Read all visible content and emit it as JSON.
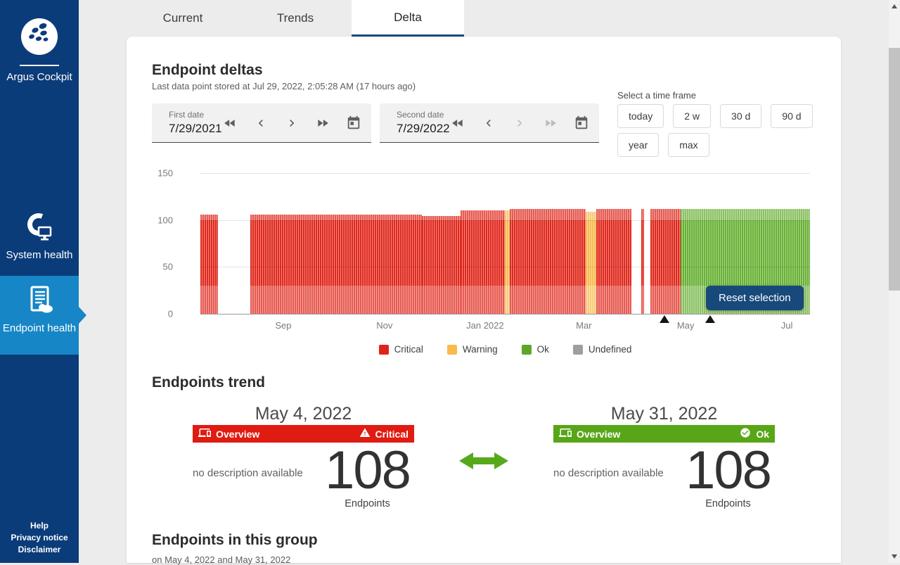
{
  "sidebar": {
    "title": "Argus Cockpit",
    "items": [
      {
        "label": "System health",
        "selected": false
      },
      {
        "label": "Endpoint health",
        "selected": true
      }
    ],
    "footer": [
      "Help",
      "Privacy notice",
      "Disclaimer"
    ],
    "colors": {
      "background": "#0b3c7a",
      "selected": "#1786c6"
    }
  },
  "tabs": [
    {
      "label": "Current",
      "active": false
    },
    {
      "label": "Trends",
      "active": false
    },
    {
      "label": "Delta",
      "active": true
    }
  ],
  "header": {
    "title": "Endpoint deltas",
    "subtitle": "Last data point stored at Jul 29, 2022, 2:05:28 AM (17 hours ago)"
  },
  "date_pickers": {
    "first": {
      "label": "First date",
      "value": "7/29/2021",
      "prev_enabled": true,
      "next_enabled": true
    },
    "second": {
      "label": "Second date",
      "value": "7/29/2022",
      "prev_enabled": true,
      "next_enabled": false
    }
  },
  "time_frame": {
    "label": "Select a time frame",
    "options": [
      "today",
      "2 w",
      "30 d",
      "90 d",
      "year",
      "max"
    ]
  },
  "chart": {
    "reset_button": "Reset selection",
    "legend": [
      {
        "label": "Critical",
        "color": "#e0241a"
      },
      {
        "label": "Warning",
        "color": "#fbba4c"
      },
      {
        "label": "Ok",
        "color": "#5da629"
      },
      {
        "label": "Undefined",
        "color": "#9e9e9e"
      }
    ]
  },
  "chart_data": {
    "type": "bar",
    "description": "Daily endpoint status totals from Aug 2021 to Jul 2022; each bar is one day colored by worst status",
    "ylim": [
      0,
      150
    ],
    "y_ticks": [
      0,
      50,
      100,
      150
    ],
    "x_ticks": [
      {
        "label": "Sep",
        "f": 0.136
      },
      {
        "label": "Nov",
        "f": 0.302
      },
      {
        "label": "Jan 2022",
        "f": 0.467
      },
      {
        "label": "Mar",
        "f": 0.629
      },
      {
        "label": "May",
        "f": 0.796
      },
      {
        "label": "Jul",
        "f": 0.962
      }
    ],
    "segments": [
      {
        "from_f": 0.0,
        "to_f": 0.029,
        "status": "critical",
        "value": 106
      },
      {
        "from_f": 0.082,
        "to_f": 0.363,
        "status": "critical",
        "value": 106
      },
      {
        "from_f": 0.363,
        "to_f": 0.427,
        "status": "critical",
        "value": 104
      },
      {
        "from_f": 0.427,
        "to_f": 0.499,
        "status": "critical",
        "value": 110
      },
      {
        "from_f": 0.499,
        "to_f": 0.508,
        "status": "warning",
        "value": 110
      },
      {
        "from_f": 0.508,
        "to_f": 0.632,
        "status": "critical",
        "value": 112
      },
      {
        "from_f": 0.632,
        "to_f": 0.649,
        "status": "warning",
        "value": 109
      },
      {
        "from_f": 0.649,
        "to_f": 0.707,
        "status": "critical",
        "value": 112
      },
      {
        "from_f": 0.723,
        "to_f": 0.728,
        "status": "critical",
        "value": 112
      },
      {
        "from_f": 0.738,
        "to_f": 0.788,
        "status": "critical",
        "value": 112
      },
      {
        "from_f": 0.788,
        "to_f": 1.0,
        "status": "ok",
        "value": 112
      }
    ],
    "selection_markers_f": [
      0.761,
      0.836
    ],
    "colors": {
      "critical": "#e0281c",
      "warning": "#f8bb51",
      "ok": "#68b135",
      "undefined": "#9e9e9e"
    }
  },
  "trend": {
    "heading": "Endpoints trend",
    "cards": [
      {
        "date": "May 4, 2022",
        "banner_label": "Overview",
        "status": "Critical",
        "status_color": "#e01b12",
        "description": "no description available",
        "count": "108",
        "unit": "Endpoints"
      },
      {
        "date": "May 31, 2022",
        "banner_label": "Overview",
        "status": "Ok",
        "status_color": "#58a618",
        "description": "no description available",
        "count": "108",
        "unit": "Endpoints"
      }
    ]
  },
  "group_section": {
    "heading": "Endpoints in this group",
    "subtitle": "on May 4, 2022 and May 31, 2022"
  }
}
